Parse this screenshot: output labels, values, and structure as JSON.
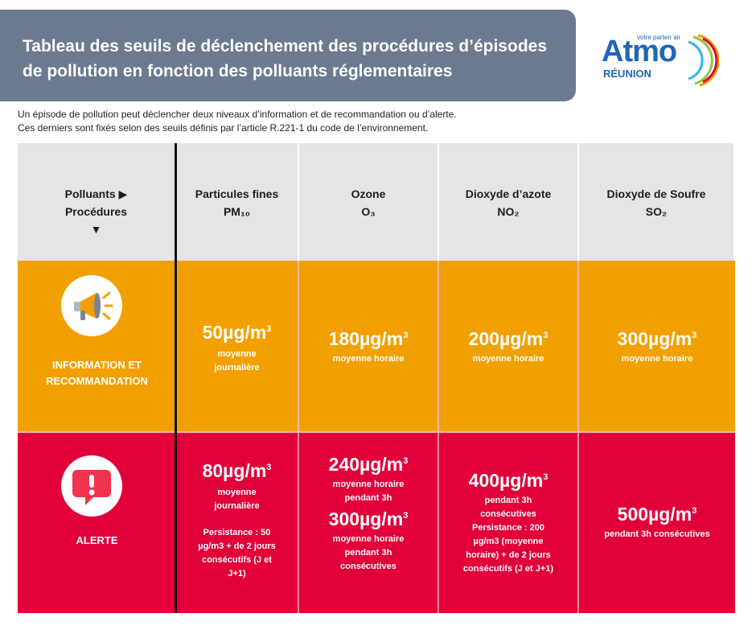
{
  "header": {
    "title_line1": "Tableau des seuils de déclenchement des procédures d’épisodes",
    "title_line2": "de pollution en fonction des polluants réglementaires"
  },
  "logo": {
    "word": "Atmo",
    "tagline": "votre partenˈair",
    "region": "RÉUNION",
    "colors": [
      "#2066b8",
      "#2fb3e6",
      "#8cc63f",
      "#f2a000",
      "#e2003a"
    ]
  },
  "intro": {
    "line1": "Un épisode de pollution peut déclencher deux niveaux d’information et de recommandation ou d’alerte.",
    "line2": "Ces derniers sont fixés selon des seuils définis par l’article R.221-1 du code de l’environnement."
  },
  "table": {
    "corner": {
      "line1": "Polluants ▶",
      "line2": "Procédures",
      "line3": "▼"
    },
    "columns": [
      {
        "name": "Particules fines",
        "formula": "PM₁₀"
      },
      {
        "name": "Ozone",
        "formula": "O₃"
      },
      {
        "name": "Dioxyde d’azote",
        "formula": "NO₂"
      },
      {
        "name": "Dioxyde de Soufre",
        "formula": "SO₂"
      }
    ],
    "info": {
      "label_line1": "INFORMATION ET",
      "label_line2": "RECOMMANDATION",
      "icon": "megaphone-icon",
      "color": "#f2a000",
      "pm10": {
        "value": "50µg/m",
        "exp": "3",
        "note1": "moyenne",
        "note2": "journalière"
      },
      "o3": {
        "value": "180µg/m",
        "exp": "3",
        "note1": "moyenne horaire"
      },
      "no2": {
        "value": "200µg/m",
        "exp": "3",
        "note1": "moyenne horaire"
      },
      "so2": {
        "value": "300µg/m",
        "exp": "3",
        "note1": "moyenne horaire"
      }
    },
    "alert": {
      "label": "ALERTE",
      "icon": "alert-bubble-icon",
      "color": "#e2003a",
      "pm10": {
        "value": "80µg/m",
        "exp": "3",
        "note1": "moyenne",
        "note2": "journalière",
        "persist1": "Persistance : 50",
        "persist2": "µg/m3 + de 2 jours",
        "persist3": "consécutifs (J et",
        "persist4": "J+1)"
      },
      "o3": {
        "value1": "240µg/m",
        "exp1": "3",
        "note1a": "moyenne horaire",
        "note1b": "pendant 3h",
        "value2": "300µg/m",
        "exp2": "3",
        "note2a": "moyenne horaire",
        "note2b": "pendant 3h",
        "note2c": "consécutives"
      },
      "no2": {
        "value": "400µg/m",
        "exp": "3",
        "note1": "pendant 3h",
        "note2": "consécutives",
        "persist1": "Persistance : 200",
        "persist2": "µg/m3  (moyenne",
        "persist3": "horaire) + de 2 jours",
        "persist4": "consécutifs (J et J+1)"
      },
      "so2": {
        "value": "500µg/m",
        "exp": "3",
        "note1": "pendant 3h consécutives"
      }
    }
  }
}
